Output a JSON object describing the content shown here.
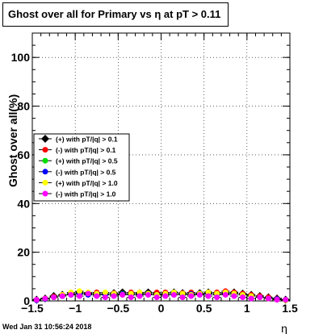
{
  "page": {
    "title": "Ghost over all for Primary vs  η at pT > 0.11",
    "timestamp": "Wed Jan 31 10:56:24 2018"
  },
  "chart_data": {
    "type": "scatter",
    "title": "Ghost over all for Primary vs  η at pT > 0.11",
    "xlabel": "η",
    "ylabel": "Ghost over all(%)",
    "xlim": [
      -1.5,
      1.5
    ],
    "ylim": [
      0,
      110
    ],
    "xticks": [
      -1.5,
      -1,
      -0.5,
      0,
      0.5,
      1,
      1.5
    ],
    "xtick_labels": [
      "−1.5",
      "−1",
      "−0.5",
      "0",
      "0.5",
      "1",
      "1.5"
    ],
    "yticks": [
      0,
      20,
      40,
      60,
      80,
      100
    ],
    "ytick_labels": [
      "0",
      "20",
      "40",
      "60",
      "80",
      "100"
    ],
    "grid": true,
    "legend_position": "left-center",
    "x": [
      -1.45,
      -1.35,
      -1.25,
      -1.15,
      -1.05,
      -0.95,
      -0.85,
      -0.75,
      -0.65,
      -0.55,
      -0.45,
      -0.35,
      -0.25,
      -0.15,
      -0.05,
      0.05,
      0.15,
      0.25,
      0.35,
      0.45,
      0.55,
      0.65,
      0.75,
      0.85,
      0.95,
      1.05,
      1.15,
      1.25,
      1.35,
      1.45
    ],
    "series": [
      {
        "name": "(+) with pT/|q| > 0.1",
        "color": "#000000",
        "values": [
          0.5,
          1.0,
          2.0,
          2.5,
          3.0,
          3.5,
          3.0,
          3.0,
          2.8,
          3.2,
          3.5,
          3.0,
          3.2,
          3.5,
          3.0,
          3.0,
          3.5,
          3.2,
          3.0,
          3.2,
          3.5,
          3.0,
          3.2,
          3.5,
          3.0,
          2.5,
          2.0,
          1.5,
          1.0,
          0.5
        ]
      },
      {
        "name": "(-) with pT/|q| > 0.1",
        "color": "#ff0000",
        "values": [
          0.5,
          1.0,
          1.8,
          2.5,
          3.0,
          3.0,
          3.2,
          3.5,
          3.0,
          3.2,
          3.0,
          3.5,
          3.2,
          3.0,
          3.5,
          3.5,
          3.0,
          3.2,
          3.5,
          3.0,
          3.2,
          3.5,
          4.0,
          3.5,
          3.0,
          2.5,
          2.0,
          1.5,
          1.0,
          0.5
        ]
      },
      {
        "name": "(+) with pT/|q| > 0.5",
        "color": "#00dd00",
        "values": [
          0.5,
          1.0,
          1.5,
          2.0,
          2.5,
          3.0,
          2.8,
          2.5,
          2.5,
          3.0,
          3.0,
          2.5,
          2.8,
          3.0,
          2.5,
          2.5,
          3.0,
          2.8,
          2.5,
          2.8,
          3.0,
          2.5,
          2.8,
          3.0,
          2.5,
          2.0,
          1.5,
          1.0,
          0.8,
          0.5
        ]
      },
      {
        "name": "(-) with pT/|q| > 0.5",
        "color": "#0000ff",
        "values": [
          0.3,
          0.8,
          1.5,
          2.0,
          2.5,
          2.8,
          2.5,
          2.8,
          2.5,
          2.5,
          2.8,
          2.5,
          2.5,
          2.8,
          2.5,
          2.8,
          2.5,
          2.5,
          2.8,
          2.5,
          2.8,
          2.5,
          3.0,
          2.8,
          2.5,
          2.0,
          1.5,
          1.0,
          0.8,
          0.3
        ]
      },
      {
        "name": "(+) with pT/|q| > 1.0",
        "color": "#ffff00",
        "values": [
          0.5,
          1.0,
          1.5,
          2.5,
          3.5,
          4.0,
          3.5,
          3.0,
          3.5,
          3.0,
          2.5,
          3.0,
          3.5,
          3.0,
          2.5,
          3.0,
          3.5,
          3.0,
          2.5,
          3.0,
          3.5,
          3.0,
          3.5,
          3.0,
          2.5,
          2.0,
          1.5,
          1.0,
          0.5,
          0.3
        ]
      },
      {
        "name": "(-) with pT/|q| > 1.0",
        "color": "#ff00ff",
        "values": [
          0.5,
          1.0,
          1.5,
          2.0,
          2.5,
          2.0,
          3.0,
          2.0,
          1.5,
          2.0,
          2.5,
          1.5,
          2.0,
          2.5,
          1.5,
          2.0,
          2.5,
          1.5,
          2.0,
          2.5,
          2.0,
          1.5,
          2.5,
          2.0,
          1.5,
          1.0,
          1.5,
          1.0,
          0.5,
          0.5
        ]
      }
    ]
  }
}
